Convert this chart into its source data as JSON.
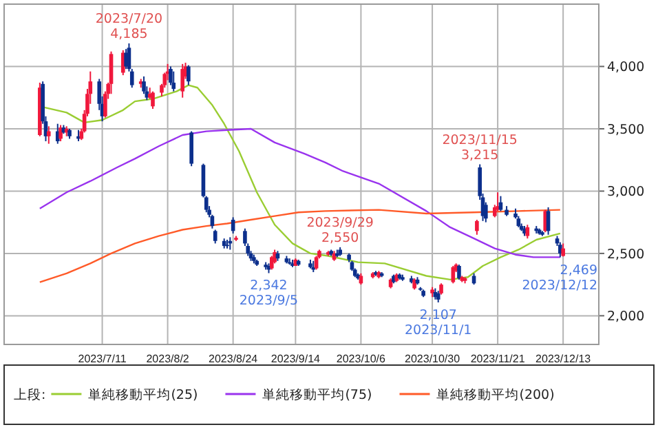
{
  "chart_data": {
    "type": "candlestick",
    "x": [
      "2023-06-20",
      "2023-06-21",
      "2023-06-22",
      "2023-06-23",
      "2023-06-26",
      "2023-06-27",
      "2023-06-28",
      "2023-06-29",
      "2023-06-30",
      "2023-07-03",
      "2023-07-04",
      "2023-07-05",
      "2023-07-06",
      "2023-07-07",
      "2023-07-10",
      "2023-07-11",
      "2023-07-12",
      "2023-07-13",
      "2023-07-14",
      "2023-07-18",
      "2023-07-19",
      "2023-07-20",
      "2023-07-21",
      "2023-07-24",
      "2023-07-25",
      "2023-07-26",
      "2023-07-27",
      "2023-07-28",
      "2023-07-31",
      "2023-08-01",
      "2023-08-02",
      "2023-08-03",
      "2023-08-04",
      "2023-08-07",
      "2023-08-08",
      "2023-08-09",
      "2023-08-10",
      "2023-08-14",
      "2023-08-15",
      "2023-08-16",
      "2023-08-17",
      "2023-08-18",
      "2023-08-21",
      "2023-08-22",
      "2023-08-23",
      "2023-08-24",
      "2023-08-25",
      "2023-08-28",
      "2023-08-29",
      "2023-08-30",
      "2023-08-31",
      "2023-09-01",
      "2023-09-04",
      "2023-09-05",
      "2023-09-06",
      "2023-09-07",
      "2023-09-08",
      "2023-09-11",
      "2023-09-12",
      "2023-09-13",
      "2023-09-14",
      "2023-09-15",
      "2023-09-19",
      "2023-09-20",
      "2023-09-21",
      "2023-09-22",
      "2023-09-25",
      "2023-09-26",
      "2023-09-27",
      "2023-09-28",
      "2023-09-29",
      "2023-10-02",
      "2023-10-03",
      "2023-10-04",
      "2023-10-05",
      "2023-10-06",
      "2023-10-10",
      "2023-10-11",
      "2023-10-12",
      "2023-10-13",
      "2023-10-16",
      "2023-10-17",
      "2023-10-18",
      "2023-10-19",
      "2023-10-20",
      "2023-10-23",
      "2023-10-24",
      "2023-10-25",
      "2023-10-26",
      "2023-10-27",
      "2023-10-30",
      "2023-10-31",
      "2023-11-01",
      "2023-11-02",
      "2023-11-06",
      "2023-11-07",
      "2023-11-08",
      "2023-11-09",
      "2023-11-10",
      "2023-11-13",
      "2023-11-14",
      "2023-11-15",
      "2023-11-16",
      "2023-11-17",
      "2023-11-20",
      "2023-11-21",
      "2023-11-22",
      "2023-11-24",
      "2023-11-27",
      "2023-11-28",
      "2023-11-29",
      "2023-11-30",
      "2023-12-01",
      "2023-12-04",
      "2023-12-05",
      "2023-12-06",
      "2023-12-07",
      "2023-12-08",
      "2023-12-11",
      "2023-12-12",
      "2023-12-13"
    ],
    "ohlc": [
      [
        3450,
        3870,
        3440,
        3830
      ],
      [
        3860,
        3880,
        3540,
        3560
      ],
      [
        3560,
        3600,
        3400,
        3440
      ],
      [
        3440,
        3520,
        3380,
        3480
      ],
      [
        3480,
        3540,
        3380,
        3400
      ],
      [
        3420,
        3530,
        3400,
        3510
      ],
      [
        3510,
        3530,
        3460,
        3470
      ],
      [
        3470,
        3520,
        3440,
        3500
      ],
      [
        3490,
        3500,
        3420,
        3440
      ],
      [
        3440,
        3490,
        3400,
        3420
      ],
      [
        3420,
        3500,
        3410,
        3480
      ],
      [
        3480,
        3650,
        3470,
        3620
      ],
      [
        3620,
        3820,
        3600,
        3780
      ],
      [
        3780,
        3960,
        3700,
        3880
      ],
      [
        3880,
        3900,
        3650,
        3700
      ],
      [
        3700,
        3760,
        3560,
        3600
      ],
      [
        3600,
        3800,
        3590,
        3780
      ],
      [
        3780,
        3870,
        3740,
        3860
      ],
      [
        3860,
        4120,
        3780,
        4100
      ],
      [
        3950,
        4130,
        3930,
        4110
      ],
      [
        4110,
        4140,
        3980,
        4000
      ],
      [
        4150,
        4185,
        3960,
        3980
      ],
      [
        3960,
        3980,
        3830,
        3850
      ],
      [
        3860,
        3900,
        3830,
        3880
      ],
      [
        3880,
        3920,
        3780,
        3800
      ],
      [
        3800,
        3840,
        3730,
        3750
      ],
      [
        3750,
        3830,
        3740,
        3780
      ],
      [
        3680,
        3800,
        3660,
        3790
      ],
      [
        3790,
        3860,
        3760,
        3850
      ],
      [
        3850,
        3950,
        3830,
        3940
      ],
      [
        3940,
        4020,
        3890,
        3960
      ],
      [
        3980,
        4000,
        3850,
        3870
      ],
      [
        3870,
        3960,
        3800,
        3820
      ],
      [
        3800,
        4020,
        3750,
        3980
      ],
      [
        3920,
        4030,
        3900,
        4000
      ],
      [
        4000,
        4010,
        3850,
        3880
      ],
      [
        3470,
        3480,
        3200,
        3220
      ],
      [
        3210,
        3220,
        2950,
        2960
      ],
      [
        2950,
        2960,
        2830,
        2850
      ],
      [
        2850,
        2880,
        2790,
        2810
      ],
      [
        2800,
        2810,
        2700,
        2720
      ],
      [
        2680,
        2690,
        2580,
        2600
      ],
      [
        2600,
        2620,
        2540,
        2560
      ],
      [
        2570,
        2610,
        2540,
        2560
      ],
      [
        2600,
        2630,
        2530,
        2580
      ],
      [
        2770,
        2790,
        2660,
        2680
      ],
      [
        2610,
        2640,
        2600,
        2625
      ],
      [
        2680,
        2700,
        2560,
        2580
      ],
      [
        2560,
        2580,
        2480,
        2500
      ],
      [
        2500,
        2520,
        2440,
        2460
      ],
      [
        2470,
        2490,
        2420,
        2440
      ],
      [
        2440,
        2450,
        2400,
        2410
      ],
      [
        2410,
        2430,
        2370,
        2390
      ],
      [
        2400,
        2420,
        2342,
        2370
      ],
      [
        2380,
        2480,
        2370,
        2470
      ],
      [
        2430,
        2530,
        2420,
        2510
      ],
      [
        2500,
        2520,
        2440,
        2460
      ],
      [
        2460,
        2480,
        2420,
        2430
      ],
      [
        2430,
        2460,
        2410,
        2420
      ],
      [
        2420,
        2450,
        2390,
        2400
      ],
      [
        2400,
        2460,
        2400,
        2450
      ],
      [
        2440,
        2450,
        2400,
        2410
      ],
      [
        2420,
        2450,
        2380,
        2390
      ],
      [
        2390,
        2440,
        2350,
        2370
      ],
      [
        2380,
        2480,
        2370,
        2470
      ],
      [
        2470,
        2530,
        2460,
        2520
      ],
      [
        2490,
        2520,
        2480,
        2510
      ],
      [
        2520,
        2530,
        2480,
        2490
      ],
      [
        2450,
        2520,
        2440,
        2500
      ],
      [
        2500,
        2530,
        2470,
        2480
      ],
      [
        2530,
        2550,
        2480,
        2490
      ],
      [
        2490,
        2500,
        2430,
        2450
      ],
      [
        2430,
        2440,
        2360,
        2370
      ],
      [
        2370,
        2380,
        2310,
        2320
      ],
      [
        2330,
        2340,
        2290,
        2300
      ],
      [
        2260,
        2340,
        2250,
        2320
      ],
      [
        2310,
        2350,
        2300,
        2340
      ],
      [
        2350,
        2360,
        2320,
        2330
      ],
      [
        2310,
        2360,
        2300,
        2350
      ],
      [
        2340,
        2350,
        2310,
        2320
      ],
      [
        2230,
        2300,
        2220,
        2290
      ],
      [
        2320,
        2330,
        2260,
        2270
      ],
      [
        2280,
        2340,
        2270,
        2330
      ],
      [
        2330,
        2340,
        2290,
        2300
      ],
      [
        2310,
        2330,
        2280,
        2290
      ],
      [
        2300,
        2320,
        2260,
        2270
      ],
      [
        2220,
        2300,
        2210,
        2290
      ],
      [
        2290,
        2310,
        2250,
        2260
      ],
      [
        2220,
        2230,
        2200,
        2210
      ],
      [
        2200,
        2210,
        2150,
        2160
      ],
      [
        2180,
        2230,
        2150,
        2210
      ],
      [
        2190,
        2220,
        2130,
        2150
      ],
      [
        2180,
        2200,
        2107,
        2130
      ],
      [
        2180,
        2260,
        2170,
        2250
      ],
      [
        2270,
        2400,
        2260,
        2390
      ],
      [
        2360,
        2420,
        2350,
        2410
      ],
      [
        2400,
        2410,
        2290,
        2300
      ],
      [
        2280,
        2320,
        2270,
        2310
      ],
      [
        2280,
        2310,
        2260,
        2300
      ],
      [
        2320,
        2340,
        2250,
        2260
      ],
      [
        2680,
        2770,
        2650,
        2760
      ],
      [
        3190,
        3215,
        2930,
        2960
      ],
      [
        2950,
        2980,
        2760,
        2800
      ],
      [
        2890,
        2910,
        2750,
        2780
      ],
      [
        2800,
        2890,
        2790,
        2870
      ],
      [
        2850,
        2990,
        2840,
        2880
      ],
      [
        2910,
        2960,
        2840,
        2850
      ],
      [
        2850,
        2880,
        2800,
        2810
      ],
      [
        2820,
        2860,
        2780,
        2790
      ],
      [
        2780,
        2800,
        2710,
        2720
      ],
      [
        2720,
        2740,
        2680,
        2690
      ],
      [
        2700,
        2720,
        2640,
        2660
      ],
      [
        2640,
        2730,
        2620,
        2710
      ],
      [
        2700,
        2720,
        2660,
        2680
      ],
      [
        2690,
        2700,
        2650,
        2660
      ],
      [
        2670,
        2680,
        2640,
        2650
      ],
      [
        2680,
        2850,
        2670,
        2840
      ],
      [
        2840,
        2870,
        2650,
        2680
      ],
      [
        2620,
        2640,
        2560,
        2580
      ],
      [
        2570,
        2590,
        2469,
        2500
      ],
      [
        2480,
        2580,
        2475,
        2540
      ]
    ],
    "series": [
      {
        "type": "line",
        "name": "単純移動平均(25)",
        "color": "#9acd32",
        "x": [
          "2023-06-20",
          "2023-06-29",
          "2023-07-05",
          "2023-07-11",
          "2023-07-18",
          "2023-07-22",
          "2023-07-28",
          "2023-08-05",
          "2023-08-09",
          "2023-08-12",
          "2023-08-17",
          "2023-08-21",
          "2023-08-26",
          "2023-09-01",
          "2023-09-07",
          "2023-09-13",
          "2023-09-19",
          "2023-09-25",
          "2023-10-05",
          "2023-10-14",
          "2023-10-28",
          "2023-11-05",
          "2023-11-11",
          "2023-11-16",
          "2023-11-22",
          "2023-11-28",
          "2023-12-04",
          "2023-12-12"
        ],
        "values": [
          3680,
          3630,
          3550,
          3570,
          3650,
          3720,
          3740,
          3800,
          3850,
          3830,
          3690,
          3540,
          3320,
          2990,
          2730,
          2580,
          2500,
          2480,
          2430,
          2420,
          2320,
          2290,
          2310,
          2400,
          2470,
          2530,
          2610,
          2660
        ]
      },
      {
        "type": "line",
        "name": "単純移動平均(75)",
        "color": "#9933ee",
        "x": [
          "2023-06-20",
          "2023-06-29",
          "2023-07-07",
          "2023-07-16",
          "2023-07-22",
          "2023-07-30",
          "2023-08-07",
          "2023-08-15",
          "2023-08-22",
          "2023-08-30",
          "2023-09-07",
          "2023-09-17",
          "2023-09-24",
          "2023-09-30",
          "2023-10-12",
          "2023-10-28",
          "2023-11-05",
          "2023-11-13",
          "2023-11-20",
          "2023-11-27",
          "2023-12-03",
          "2023-12-12"
        ],
        "values": [
          2860,
          2990,
          3080,
          3190,
          3260,
          3360,
          3450,
          3480,
          3490,
          3500,
          3390,
          3300,
          3230,
          3160,
          3060,
          2840,
          2710,
          2620,
          2540,
          2490,
          2470,
          2470
        ]
      },
      {
        "type": "line",
        "name": "単純移動平均(200)",
        "color": "#ff5a28",
        "x": [
          "2023-06-20",
          "2023-06-29",
          "2023-07-07",
          "2023-07-14",
          "2023-07-22",
          "2023-07-30",
          "2023-08-07",
          "2023-08-15",
          "2023-08-22",
          "2023-08-30",
          "2023-09-07",
          "2023-09-15",
          "2023-09-24",
          "2023-10-12",
          "2023-10-28",
          "2023-11-13",
          "2023-11-28",
          "2023-12-12"
        ],
        "values": [
          2270,
          2340,
          2420,
          2500,
          2580,
          2640,
          2690,
          2720,
          2740,
          2770,
          2800,
          2830,
          2840,
          2850,
          2820,
          2830,
          2840,
          2850
        ]
      }
    ],
    "xlim": [
      "2023-06-08",
      "2023-12-25"
    ],
    "xticks": [
      {
        "value": "2023-07-11",
        "label": "2023/7/11"
      },
      {
        "value": "2023-08-02",
        "label": "2023/8/2"
      },
      {
        "value": "2023-08-24",
        "label": "2023/8/24"
      },
      {
        "value": "2023-09-14",
        "label": "2023/9/14"
      },
      {
        "value": "2023-10-06",
        "label": "2023/10/6"
      },
      {
        "value": "2023-10-30",
        "label": "2023/10/30"
      },
      {
        "value": "2023-11-21",
        "label": "2023/11/21"
      },
      {
        "value": "2023-12-13",
        "label": "2023/12/13"
      }
    ],
    "ylim": [
      1770,
      4500
    ],
    "yticks": [
      {
        "value": 2000,
        "label": "2,000"
      },
      {
        "value": 2500,
        "label": "2,500"
      },
      {
        "value": 3000,
        "label": "3,000"
      },
      {
        "value": 3500,
        "label": "3,500"
      },
      {
        "value": 4000,
        "label": "4,000"
      }
    ],
    "grid": true,
    "legend": "bottom",
    "legend_title": "上段:",
    "annotations": [
      {
        "text": "2023/7/20",
        "x": "2023-07-20",
        "y": 4185
      },
      {
        "text": "4,185",
        "x": "2023-07-20",
        "y": 4185
      },
      {
        "text": "2,342",
        "x": "2023-09-05",
        "y": 2342
      },
      {
        "text": "2023/9/5",
        "x": "2023-09-05",
        "y": 2342
      },
      {
        "text": "2023/9/29",
        "x": "2023-09-29",
        "y": 2550
      },
      {
        "text": "2,550",
        "x": "2023-09-29",
        "y": 2550
      },
      {
        "text": "2,107",
        "x": "2023-11-01",
        "y": 2107
      },
      {
        "text": "2023/11/1",
        "x": "2023-11-01",
        "y": 2107
      },
      {
        "text": "2023/11/15",
        "x": "2023-11-15",
        "y": 3215
      },
      {
        "text": "3,215",
        "x": "2023-11-15",
        "y": 3215
      },
      {
        "text": "2,469",
        "x": "2023-12-12",
        "y": 2469
      },
      {
        "text": "2023/12/12",
        "x": "2023-12-12",
        "y": 2469
      }
    ]
  }
}
